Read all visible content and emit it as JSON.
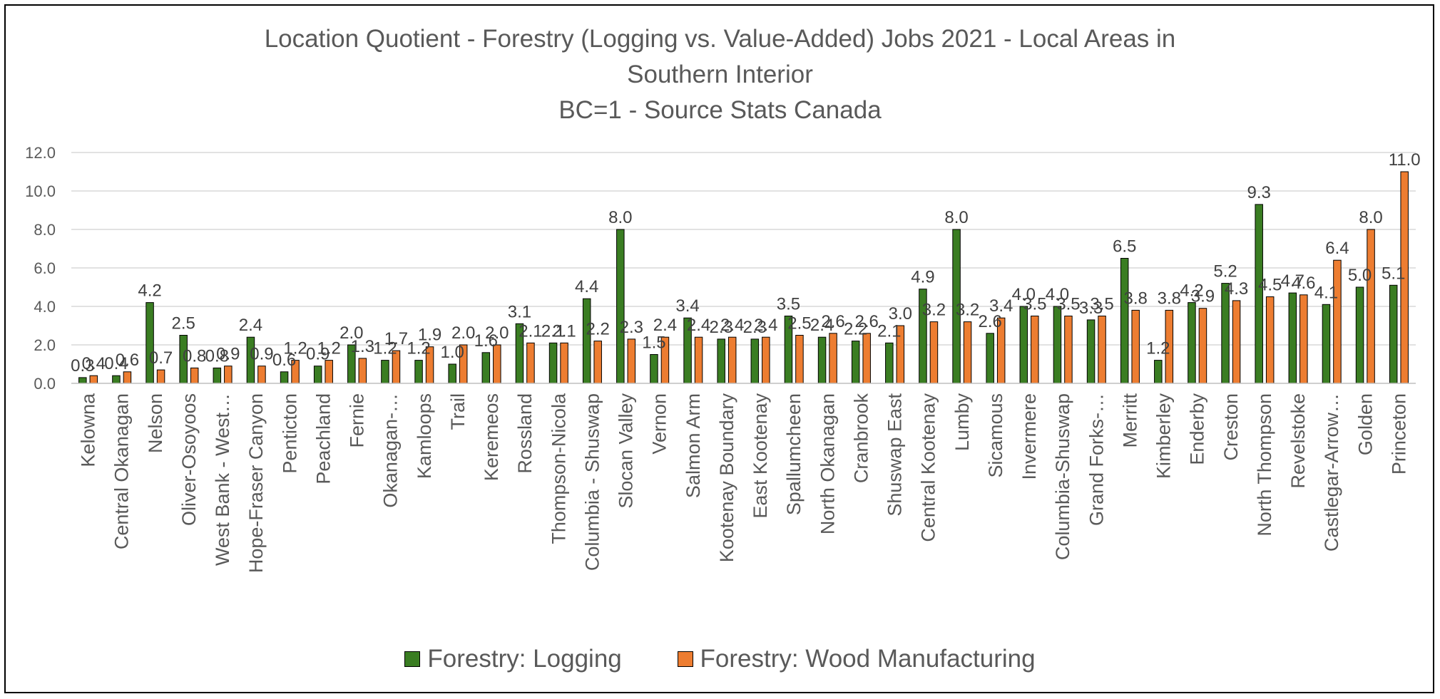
{
  "chart_data": {
    "type": "bar",
    "title_lines": [
      "Location Quotient - Forestry (Logging vs. Value-Added)  Jobs 2021  - Local Areas in",
      "Southern Interior",
      "BC=1 - Source Stats Canada"
    ],
    "ylim": [
      0,
      12
    ],
    "yticks": [
      "0.0",
      "2.0",
      "4.0",
      "6.0",
      "8.0",
      "10.0",
      "12.0"
    ],
    "grid": true,
    "legend_position": "bottom",
    "categories": [
      "Kelowna",
      "Central Okanagan",
      "Nelson",
      "Oliver-Osoyoos",
      "West Bank - West…",
      "Hope-Fraser Canyon",
      "Penticton",
      "Peachland",
      "Fernie",
      "Okanagan-…",
      "Kamloops",
      "Trail",
      "Keremeos",
      "Rossland",
      "Thompson-Nicola",
      "Columbia - Shuswap",
      "Slocan Valley",
      "Vernon",
      "Salmon Arm",
      "Kootenay Boundary",
      "East Kootenay",
      "Spallumcheen",
      "North Okanagan",
      "Cranbrook",
      "Shuswap East",
      "Central Kootenay",
      "Lumby",
      "Sicamous",
      "Invermere",
      "Columbia-Shuswap",
      "Grand Forks-…",
      "Merritt",
      "Kimberley",
      "Enderby",
      "Creston",
      "North Thompson",
      "Revelstoke",
      "Castlegar-Arrow…",
      "Golden",
      "Princeton"
    ],
    "series": [
      {
        "name": "Forestry: Logging",
        "color": "#3a7d22",
        "values": [
          0.3,
          0.4,
          4.2,
          2.5,
          0.8,
          2.4,
          0.6,
          0.9,
          2.0,
          1.2,
          1.2,
          1.0,
          1.6,
          3.1,
          2.1,
          4.4,
          8.0,
          1.5,
          3.4,
          2.3,
          2.3,
          3.5,
          2.4,
          2.2,
          2.1,
          4.9,
          8.0,
          2.6,
          4.0,
          4.0,
          3.3,
          6.5,
          1.2,
          4.2,
          5.2,
          9.3,
          4.7,
          4.1,
          5.0,
          5.1
        ],
        "labels": [
          "0.3",
          "0.4",
          "4.2",
          "2.5",
          "0.8",
          "2.4",
          "0.6",
          "0.9",
          "2.0",
          "1.2",
          "1.2",
          "1.0",
          "1.6",
          "3.1",
          "2.1",
          "4.4",
          "8.0",
          "1.5",
          "3.4",
          "2.3",
          "2.3",
          "3.5",
          "2.4",
          "2.2",
          "2.1",
          "4.9",
          "8.0",
          "2.6",
          "4.0",
          "4.0",
          "3.3",
          "6.5",
          "1.2",
          "4.2",
          "5.2",
          "9.3",
          "4.7",
          "4.1",
          "5.0",
          "5.1"
        ]
      },
      {
        "name": "Forestry: Wood Manufacturing",
        "color": "#ed7d31",
        "values": [
          0.4,
          0.6,
          0.7,
          0.8,
          0.9,
          0.9,
          1.2,
          1.2,
          1.3,
          1.7,
          1.9,
          2.0,
          2.0,
          2.1,
          2.1,
          2.2,
          2.3,
          2.4,
          2.4,
          2.4,
          2.4,
          2.5,
          2.6,
          2.6,
          3.0,
          3.2,
          3.2,
          3.4,
          3.5,
          3.5,
          3.5,
          3.8,
          3.8,
          3.9,
          4.3,
          4.5,
          4.6,
          6.4,
          8.0,
          11.0
        ],
        "labels": [
          "0.4",
          "0.6",
          "0.7",
          "0.8",
          "0.9",
          "0.9",
          "1.2",
          "1.2",
          "1.3",
          "1.7",
          "1.9",
          "2.0",
          "2.0",
          "2.1",
          "2.1",
          "2.2",
          "2.3",
          "2.4",
          "2.4",
          "2.4",
          "2.4",
          "2.5",
          "2.6",
          "2.6",
          "3.0",
          "3.2",
          "3.2",
          "3.4",
          "3.5",
          "3.5",
          "3.5",
          "3.8",
          "3.8",
          "3.9",
          "4.3",
          "4.5",
          "4.6",
          "6.4",
          "8.0",
          "11.0"
        ]
      }
    ]
  }
}
